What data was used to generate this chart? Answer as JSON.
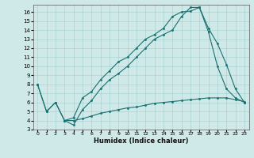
{
  "title": "",
  "xlabel": "Humidex (Indice chaleur)",
  "bg_color": "#cfe8e8",
  "line_color": "#1a7070",
  "xlim": [
    -0.5,
    23.5
  ],
  "ylim": [
    3,
    16.8
  ],
  "yticks": [
    3,
    4,
    5,
    6,
    7,
    8,
    9,
    10,
    11,
    12,
    13,
    14,
    15,
    16
  ],
  "xticks": [
    0,
    1,
    2,
    3,
    4,
    5,
    6,
    7,
    8,
    9,
    10,
    11,
    12,
    13,
    14,
    15,
    16,
    17,
    18,
    19,
    20,
    21,
    22,
    23
  ],
  "line1_x": [
    0,
    1,
    2,
    3,
    4,
    5,
    6,
    7,
    8,
    9,
    10,
    11,
    12,
    13,
    14,
    15,
    16,
    17,
    18,
    19,
    20,
    21,
    22,
    23
  ],
  "line1_y": [
    8,
    5,
    6,
    4,
    4.3,
    6.5,
    7.2,
    8.5,
    9.5,
    10.5,
    11.0,
    12.0,
    13.0,
    13.5,
    14.2,
    15.5,
    16.0,
    16.1,
    16.5,
    14.2,
    12.5,
    10.2,
    7.5,
    6.0
  ],
  "line2_x": [
    0,
    1,
    2,
    3,
    4,
    5,
    6,
    7,
    8,
    9,
    10,
    11,
    12,
    13,
    14,
    15,
    16,
    17,
    18,
    19,
    20,
    21,
    22,
    23
  ],
  "line2_y": [
    8,
    5,
    6,
    4,
    3.5,
    5.2,
    6.2,
    7.5,
    8.5,
    9.2,
    10.0,
    11.0,
    12.0,
    13.0,
    13.5,
    14.0,
    15.5,
    16.5,
    16.5,
    13.8,
    10.0,
    7.5,
    6.5,
    6.0
  ],
  "line3_x": [
    3,
    4,
    5,
    6,
    7,
    8,
    9,
    10,
    11,
    12,
    13,
    14,
    15,
    16,
    17,
    18,
    19,
    20,
    21,
    22,
    23
  ],
  "line3_y": [
    4.0,
    4.0,
    4.2,
    4.5,
    4.8,
    5.0,
    5.2,
    5.4,
    5.5,
    5.7,
    5.9,
    6.0,
    6.1,
    6.2,
    6.3,
    6.4,
    6.5,
    6.5,
    6.5,
    6.3,
    6.1
  ]
}
